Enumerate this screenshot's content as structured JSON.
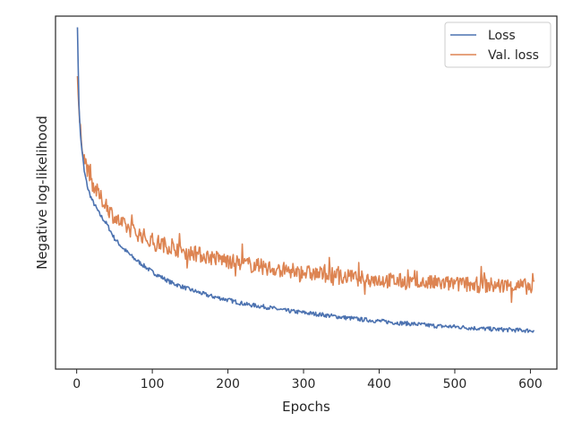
{
  "chart_data": {
    "type": "line",
    "xlabel": "Epochs",
    "ylabel": "Negative log-likelihood",
    "xlim": [
      -28,
      635
    ],
    "ylim": [
      0,
      1
    ],
    "x_ticks": [
      0,
      100,
      200,
      300,
      400,
      500,
      600
    ],
    "y_ticks": [],
    "y_scale_note": "no y tick labels shown; y values are normalized (0 = axis bottom, 1 = axis top)",
    "grid": false,
    "legend_position": "top-right",
    "series": [
      {
        "name": "Loss",
        "color": "#4c72b0",
        "x": [
          1,
          3,
          5,
          10,
          15,
          20,
          30,
          40,
          50,
          60,
          75,
          100,
          125,
          150,
          175,
          200,
          225,
          250,
          275,
          300,
          325,
          350,
          375,
          400,
          425,
          450,
          475,
          500,
          525,
          550,
          575,
          600,
          605
        ],
        "y": [
          0.97,
          0.75,
          0.66,
          0.56,
          0.51,
          0.48,
          0.44,
          0.41,
          0.37,
          0.345,
          0.315,
          0.275,
          0.245,
          0.225,
          0.208,
          0.196,
          0.183,
          0.176,
          0.166,
          0.16,
          0.154,
          0.147,
          0.141,
          0.136,
          0.131,
          0.127,
          0.122,
          0.12,
          0.116,
          0.113,
          0.111,
          0.109,
          0.11
        ]
      },
      {
        "name": "Val. loss",
        "color": "#dd8452",
        "x": [
          1,
          3,
          5,
          10,
          15,
          20,
          30,
          40,
          50,
          60,
          75,
          100,
          125,
          150,
          175,
          200,
          225,
          250,
          275,
          300,
          325,
          350,
          375,
          400,
          425,
          450,
          475,
          500,
          525,
          550,
          575,
          600,
          605
        ],
        "y": [
          0.83,
          0.73,
          0.67,
          0.6,
          0.56,
          0.53,
          0.49,
          0.46,
          0.43,
          0.41,
          0.39,
          0.365,
          0.345,
          0.33,
          0.318,
          0.307,
          0.297,
          0.288,
          0.28,
          0.273,
          0.268,
          0.262,
          0.257,
          0.253,
          0.249,
          0.245,
          0.243,
          0.241,
          0.239,
          0.237,
          0.235,
          0.234,
          0.24
        ]
      }
    ]
  }
}
